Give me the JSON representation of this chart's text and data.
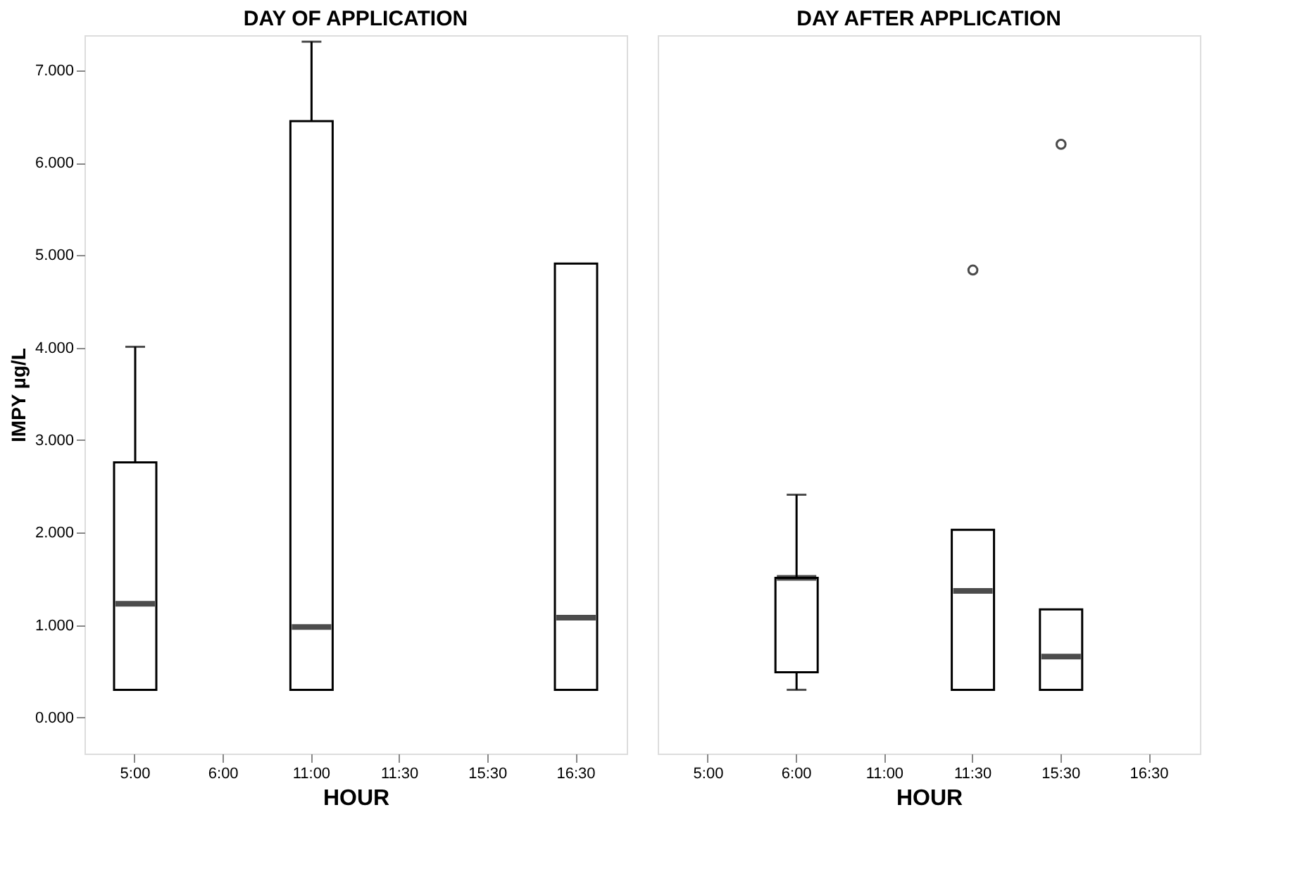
{
  "chart_data": [
    {
      "type": "box",
      "title": "DAY OF APPLICATION",
      "xlabel": "HOUR",
      "ylabel": "IMPY µg/L",
      "categories": [
        "5:00",
        "6:00",
        "11:00",
        "11:30",
        "15:30",
        "16:30"
      ],
      "boxes": [
        {
          "low": 0.3,
          "q1": 0.3,
          "median": 1.23,
          "q3": 2.76,
          "high": 4.01
        },
        null,
        {
          "low": 0.3,
          "q1": 0.3,
          "median": 0.98,
          "q3": 6.45,
          "high": 7.31
        },
        null,
        null,
        {
          "low": 0.3,
          "q1": 0.3,
          "median": 1.08,
          "q3": 4.91,
          "high": 4.91
        }
      ],
      "ylim": [
        -0.39,
        7.38
      ],
      "yticks": [
        {
          "value": 0,
          "label": "0.000"
        },
        {
          "value": 1,
          "label": "1.000"
        },
        {
          "value": 2,
          "label": "2.000"
        },
        {
          "value": 3,
          "label": "3.000"
        },
        {
          "value": 4,
          "label": "4.000"
        },
        {
          "value": 5,
          "label": "5.000"
        },
        {
          "value": 6,
          "label": "6.000"
        },
        {
          "value": 7,
          "label": "7.000"
        }
      ],
      "grid": false
    },
    {
      "type": "box",
      "title": "DAY AFTER APPLICATION",
      "xlabel": "HOUR",
      "categories": [
        "5:00",
        "6:00",
        "11:00",
        "11:30",
        "15:30",
        "16:30"
      ],
      "boxes": [
        null,
        {
          "low": 0.3,
          "q1": 0.49,
          "median": 1.51,
          "q3": 1.51,
          "high": 2.41
        },
        null,
        {
          "low": 0.3,
          "q1": 0.3,
          "median": 1.37,
          "q3": 2.03,
          "high": 2.03,
          "outliers": [
            4.84
          ]
        },
        {
          "low": 0.3,
          "q1": 0.3,
          "median": 0.66,
          "q3": 1.17,
          "high": 1.17,
          "outliers": [
            6.2
          ]
        },
        null
      ],
      "ylim": [
        -0.39,
        7.38
      ],
      "tick_labels": "x",
      "grid": false
    }
  ]
}
